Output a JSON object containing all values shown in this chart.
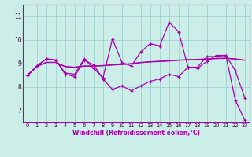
{
  "xlabel": "Windchill (Refroidissement éolien,°C)",
  "bg_color": "#cceee8",
  "line_color": "#aa00aa",
  "grid_color": "#99cccc",
  "xlim": [
    -0.5,
    23.5
  ],
  "ylim": [
    6.5,
    11.5
  ],
  "yticks": [
    7,
    8,
    9,
    10,
    11
  ],
  "xticks": [
    0,
    1,
    2,
    3,
    4,
    5,
    6,
    7,
    8,
    9,
    10,
    11,
    12,
    13,
    14,
    15,
    16,
    17,
    18,
    19,
    20,
    21,
    22,
    23
  ],
  "line_spiky": [
    8.5,
    8.9,
    9.2,
    9.15,
    8.6,
    8.55,
    9.2,
    8.8,
    8.4,
    10.05,
    9.05,
    8.9,
    9.5,
    9.85,
    9.75,
    10.75,
    10.35,
    8.85,
    8.8,
    9.1,
    9.35,
    9.35,
    8.7,
    7.55
  ],
  "line_flat1": [
    8.5,
    8.88,
    9.05,
    9.05,
    8.88,
    8.85,
    8.9,
    8.9,
    8.92,
    8.95,
    8.97,
    9.0,
    9.05,
    9.08,
    9.1,
    9.12,
    9.15,
    9.17,
    9.18,
    9.2,
    9.22,
    9.23,
    9.2,
    9.15
  ],
  "line_flat2": [
    8.5,
    8.87,
    9.05,
    9.05,
    8.87,
    8.84,
    8.89,
    8.89,
    8.91,
    8.94,
    8.96,
    8.99,
    9.04,
    9.07,
    9.09,
    9.11,
    9.14,
    9.16,
    9.17,
    9.19,
    9.21,
    9.22,
    9.19,
    9.14
  ],
  "line_diagonal": [
    8.5,
    8.9,
    9.2,
    9.15,
    8.55,
    8.45,
    9.15,
    8.95,
    8.35,
    7.9,
    8.05,
    7.85,
    8.05,
    8.25,
    8.35,
    8.55,
    8.45,
    8.85,
    8.85,
    9.3,
    9.3,
    9.35,
    7.45,
    6.6
  ]
}
